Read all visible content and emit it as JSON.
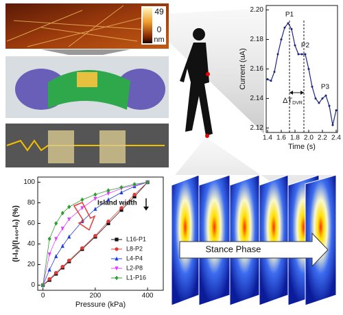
{
  "chart_data": [
    {
      "type": "line",
      "xlabel": "Time (s)",
      "ylabel": "Current (uA)",
      "color": "#1a237e",
      "x": [
        1.4,
        1.45,
        1.5,
        1.55,
        1.6,
        1.65,
        1.7,
        1.75,
        1.8,
        1.85,
        1.9,
        1.95,
        2.0,
        2.05,
        2.1,
        2.15,
        2.2,
        2.25,
        2.3,
        2.35,
        2.4
      ],
      "values": [
        2.153,
        2.152,
        2.158,
        2.17,
        2.18,
        2.188,
        2.191,
        2.187,
        2.176,
        2.17,
        2.17,
        2.17,
        2.16,
        2.148,
        2.14,
        2.137,
        2.14,
        2.142,
        2.135,
        2.122,
        2.132
      ],
      "xlim": [
        1.38,
        2.42
      ],
      "xticks": [
        1.4,
        1.6,
        1.8,
        {
          "value": 2,
          "label": "2.0"
        },
        2.2,
        2.4
      ],
      "ylim": [
        2.117,
        2.203
      ],
      "yticks": [
        2.12,
        2.14,
        2.16,
        2.18,
        {
          "value": 2.2,
          "label": "2.20"
        }
      ],
      "annotations": [
        {
          "text": "P1",
          "x": 1.72,
          "y": 2.195
        },
        {
          "text": "P2",
          "x": 1.95,
          "y": 2.174
        },
        {
          "text": "P3",
          "x": 2.24,
          "y": 2.146
        }
      ],
      "vlines": [
        1.72,
        1.93
      ],
      "interval_label": "ΔT",
      "interval_sub": "DVR"
    },
    {
      "type": "line",
      "xlabel": "Pressure (kPa)",
      "ylabel": "(I-I₀)/(I₄₀₀-I₀) (%)",
      "x": [
        0,
        25,
        50,
        75,
        100,
        150,
        200,
        250,
        300,
        350,
        400
      ],
      "series": [
        {
          "name": "L16-P1",
          "color": "#111111",
          "marker": "square",
          "values": [
            0,
            5,
            11,
            17,
            23,
            35,
            47,
            60,
            73,
            86,
            100
          ]
        },
        {
          "name": "L8-P2",
          "color": "#e53935",
          "marker": "circle",
          "values": [
            0,
            6,
            12,
            18,
            24,
            36,
            48,
            62,
            75,
            88,
            100
          ]
        },
        {
          "name": "L4-P4",
          "color": "#1e3fe0",
          "marker": "triangle",
          "values": [
            0,
            15,
            28,
            38,
            47,
            62,
            74,
            83,
            90,
            96,
            100
          ]
        },
        {
          "name": "L2-P8",
          "color": "#e040fb",
          "marker": "triangle-down",
          "values": [
            0,
            30,
            45,
            55,
            64,
            75,
            84,
            89,
            94,
            97,
            100
          ]
        },
        {
          "name": "L1-P16",
          "color": "#2e9e2e",
          "marker": "diamond",
          "values": [
            0,
            45,
            60,
            70,
            76,
            83,
            88,
            92,
            95,
            98,
            100
          ]
        }
      ],
      "xlim": [
        -20,
        460
      ],
      "xticks": [
        0,
        200,
        400
      ],
      "ylim": [
        -5,
        105
      ],
      "yticks": [
        0,
        20,
        40,
        60,
        80,
        100
      ],
      "legend": "lower-right",
      "annotation": "Island width"
    }
  ],
  "afm_scale": {
    "max": 49,
    "min": 0,
    "unit": "nm"
  },
  "stance_label": "Stance Phase"
}
